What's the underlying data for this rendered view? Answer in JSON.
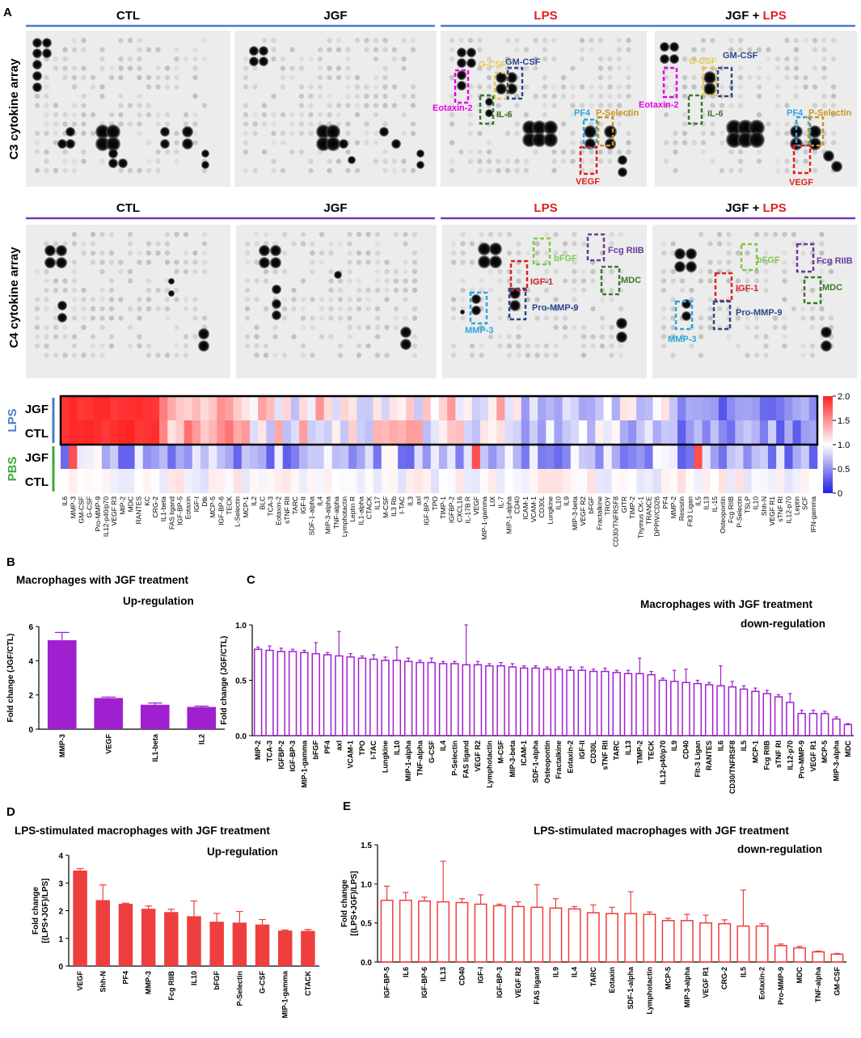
{
  "figure": {
    "panel_A": {
      "label": "A",
      "conditions": [
        "CTL",
        "JGF",
        "LPS",
        "JGF + LPS"
      ],
      "c3_label": "C3 cytokine array",
      "c4_label": "C4 cytokine array",
      "c3_callouts_lps": [
        {
          "text": "Eotaxin-2",
          "color": "#e600e6"
        },
        {
          "text": "G-CSF",
          "color": "#e6c84a"
        },
        {
          "text": "GM-CSF",
          "color": "#2a4a8a"
        },
        {
          "text": "IL-6",
          "color": "#3a7a2a"
        },
        {
          "text": "PF4",
          "color": "#29a8e0"
        },
        {
          "text": "P-Selectin",
          "color": "#c8961e"
        },
        {
          "text": "VEGF",
          "color": "#e02020"
        }
      ],
      "c3_callouts_jgflps": [
        {
          "text": "Eotaxin-2",
          "color": "#e600e6"
        },
        {
          "text": "G-CSF",
          "color": "#e6c84a"
        },
        {
          "text": "GM-CSF",
          "color": "#2a4a8a"
        },
        {
          "text": "IL-6",
          "color": "#3a7a2a"
        },
        {
          "text": "PF4",
          "color": "#29a8e0"
        },
        {
          "text": "P-Selectin",
          "color": "#c8961e"
        },
        {
          "text": "VEGF",
          "color": "#e02020"
        }
      ],
      "c4_callouts_lps": [
        {
          "text": "bFGF",
          "color": "#7ec850"
        },
        {
          "text": "Fcg RIIB",
          "color": "#6a3a9a"
        },
        {
          "text": "IGF-1",
          "color": "#e02020"
        },
        {
          "text": "MDC",
          "color": "#3a7a2a"
        },
        {
          "text": "Pro-MMP-9",
          "color": "#2a4a8a"
        },
        {
          "text": "MMP-3",
          "color": "#29a8e0"
        }
      ],
      "c4_callouts_jgflps": [
        {
          "text": "bFGF",
          "color": "#7ec850"
        },
        {
          "text": "Fcg RIIB",
          "color": "#6a3a9a"
        },
        {
          "text": "IGF-1",
          "color": "#e02020"
        },
        {
          "text": "MDC",
          "color": "#3a7a2a"
        },
        {
          "text": "Pro-MMP-9",
          "color": "#2a4a8a"
        },
        {
          "text": "MMP-3",
          "color": "#29a8e0"
        }
      ]
    },
    "heatmap": {
      "group_labels": [
        "LPS",
        "PBS"
      ],
      "row_labels": [
        "JGF",
        "CTL",
        "JGF",
        "CTL"
      ],
      "colorbar_ticks": [
        "2.0",
        "1.5",
        "1.0",
        "0.5",
        "0"
      ],
      "columns": [
        "IL6",
        "MMP-3",
        "GM-CSF",
        "G-CSF",
        "Pro-MMP-9",
        "IL12-p40/p70",
        "VEGF R3",
        "MIP-2",
        "MDC",
        "RANTES",
        "KC",
        "CRG-2",
        "IL1-beta",
        "FAS ligand",
        "IGF-BP-5",
        "Eotaxin",
        "IGF-I",
        "Dtk",
        "MCP-5",
        "IGF-BP-6",
        "TECK",
        "L-Selectin",
        "MCP-1",
        "IL2",
        "BLC",
        "TCA-3",
        "Eotaxin-2",
        "sTNF RII",
        "TARC",
        "IGF-II",
        "SDF-1-alpha",
        "IL4",
        "MIP-3-alpha",
        "TNF-alpha",
        "Lymphotactin",
        "Leptin R",
        "IL1-alpha",
        "CTACK",
        "IL17",
        "M-CSF",
        "IL3 Rb",
        "I-TAC",
        "IL3",
        "axl",
        "IGF-BP-3",
        "TPO",
        "TIMP-1",
        "IGFBP-2",
        "CXCL16",
        "IL-17B R",
        "VEGF",
        "MIP-1-gamma",
        "LIX",
        "IL-7",
        "MIP-1-alpha",
        "CD40",
        "ICAM-1",
        "VCAM-1",
        "CD30L",
        "Lungkine",
        "IL10",
        "IL9",
        "MIP-3-beta",
        "VEGF R2",
        "bFGF",
        "Fractalkine",
        "TROY",
        "CD30/TNFRSF8",
        "GITR",
        "TIMP-2",
        "Thymus CK-1",
        "TRANCE",
        "DPPIV/CD26",
        "PF4",
        "MMP-2",
        "Resistin",
        "Flt3 Ligan",
        "IL5",
        "IL13",
        "IL-15",
        "Osteopontin",
        "Fcg RIIB",
        "P-Selectin",
        "TSLP",
        "IL10",
        "Shh-N",
        "VEGF R1",
        "sTNF RI",
        "IL12-p70",
        "Leptin",
        "SCF",
        "IFN-gamma"
      ]
    },
    "chart_data": [
      {
        "id": "B",
        "type": "bar",
        "title": "Macrophages with  JGF treatment",
        "subtitle": "Up-regulation",
        "ylabel": "Fold change (JGF/CTL)",
        "ylim": [
          0,
          6
        ],
        "yticks": [
          0,
          2,
          4,
          6
        ],
        "categories": [
          "MMP-3",
          "VEGF",
          "IL1-beta",
          "IL2"
        ],
        "values": [
          5.2,
          1.82,
          1.43,
          1.3
        ],
        "errors": [
          0.45,
          0.06,
          0.1,
          0.05
        ],
        "color": "#a020d0",
        "fill": "solid"
      },
      {
        "id": "C",
        "type": "bar",
        "title": "Macrophages with  JGF treatment",
        "subtitle": "down-regulation",
        "ylabel": "Fold change (JGF/CTL)",
        "ylim": [
          0,
          1.0
        ],
        "yticks": [
          "0.0",
          "0.5",
          "1.0"
        ],
        "categories": [
          "MIP-2",
          "TCA-3",
          "IGFBP-2",
          "IGF-BP-3",
          "MIP-1-gamma",
          "bFGF",
          "PF4",
          "axl",
          "VCAM-1",
          "TPO",
          "I-TAC",
          "Lungkine",
          "IL10",
          "MIP-1-alpha",
          "TNF-alpha",
          "G-CSF",
          "IL4",
          "P-Selectin",
          "FAS ligand",
          "VEGF R2",
          "Lymphotactin",
          "M-CSF",
          "MIP-3-beta",
          "ICAM-1",
          "SDF-1-alpha",
          "Osteopontin",
          "Fractalkine",
          "Eotaxin-2",
          "IGF-II",
          "CD30L",
          "sTNF RII",
          "TARC",
          "IL13",
          "TIMP-2",
          "TECK",
          "IL12-p40/p70",
          "IL9",
          "CD40",
          "Flt-3 Ligan",
          "RANTES",
          "IL6",
          "CD30/TNFRSF8",
          "IL5",
          "MCP-1",
          "Fcg RIIB",
          "sTNF RI",
          "IL12-p70",
          "Pro-MMP-9",
          "VEGF R1",
          "MCP-5",
          "MIP-3-alpha",
          "MDC"
        ],
        "values": [
          0.78,
          0.77,
          0.76,
          0.76,
          0.75,
          0.74,
          0.73,
          0.72,
          0.71,
          0.7,
          0.69,
          0.68,
          0.68,
          0.67,
          0.66,
          0.66,
          0.65,
          0.65,
          0.64,
          0.64,
          0.63,
          0.63,
          0.62,
          0.61,
          0.61,
          0.6,
          0.6,
          0.59,
          0.59,
          0.58,
          0.58,
          0.57,
          0.56,
          0.56,
          0.55,
          0.5,
          0.49,
          0.48,
          0.47,
          0.46,
          0.45,
          0.44,
          0.42,
          0.4,
          0.38,
          0.35,
          0.3,
          0.2,
          0.2,
          0.2,
          0.15,
          0.1
        ],
        "errors": [
          0.02,
          0.04,
          0.03,
          0.02,
          0.02,
          0.1,
          0.02,
          0.22,
          0.03,
          0.02,
          0.04,
          0.03,
          0.12,
          0.03,
          0.02,
          0.04,
          0.02,
          0.02,
          0.36,
          0.03,
          0.02,
          0.03,
          0.03,
          0.02,
          0.02,
          0.02,
          0.02,
          0.03,
          0.03,
          0.02,
          0.03,
          0.02,
          0.03,
          0.14,
          0.03,
          0.02,
          0.1,
          0.12,
          0.03,
          0.02,
          0.18,
          0.05,
          0.03,
          0.03,
          0.03,
          0.02,
          0.08,
          0.03,
          0.03,
          0.02,
          0.02,
          0.01
        ],
        "color": "#a020d0",
        "fill": "hollow"
      },
      {
        "id": "D",
        "type": "bar",
        "title": "LPS-stimulated macrophages with  JGF treatment",
        "subtitle": "Up-regulation",
        "ylabel": "Fold change\n[(LPS+JGF)/LPS]",
        "ylim": [
          0,
          4
        ],
        "yticks": [
          0,
          1,
          2,
          3,
          4
        ],
        "categories": [
          "VEGF",
          "Shh-N",
          "PF4",
          "MMP-3",
          "Fcg RIIB",
          "IL10",
          "bFGF",
          "P-Selectin",
          "G-CSF",
          "MIP-1-gamma",
          "CTACK"
        ],
        "values": [
          3.45,
          2.38,
          2.25,
          2.07,
          1.95,
          1.8,
          1.6,
          1.57,
          1.5,
          1.28,
          1.27
        ],
        "errors": [
          0.07,
          0.55,
          0.02,
          0.1,
          0.1,
          0.55,
          0.3,
          0.4,
          0.18,
          0.02,
          0.05
        ],
        "color": "#ee3e3e",
        "fill": "solid"
      },
      {
        "id": "E",
        "type": "bar",
        "title": "LPS-stimulated macrophages with  JGF treatment",
        "subtitle": "down-regulation",
        "ylabel": "Fold change\n[(LPS+JGF)/LPS]",
        "ylim": [
          0,
          1.5
        ],
        "yticks": [
          "0.0",
          "0.5",
          "1.0",
          "1.5"
        ],
        "categories": [
          "IGF-BP-5",
          "IL6",
          "IGF-BP-6",
          "IL13",
          "CD40",
          "IGF-I",
          "IGF-BP-3",
          "VEGF R2",
          "FAS ligand",
          "IL9",
          "IL4",
          "TARC",
          "Eotaxin",
          "SDF-1-alpha",
          "Lymphotactin",
          "MCP-5",
          "MIP-3-alpha",
          "VEGF R1",
          "CRG-2",
          "IL5",
          "Eotaxin-2",
          "Pro-MMP-9",
          "MDC",
          "TNF-alpha",
          "GM-CSF"
        ],
        "values": [
          0.79,
          0.79,
          0.78,
          0.77,
          0.76,
          0.74,
          0.72,
          0.71,
          0.7,
          0.69,
          0.68,
          0.63,
          0.62,
          0.62,
          0.61,
          0.53,
          0.53,
          0.5,
          0.49,
          0.46,
          0.46,
          0.21,
          0.18,
          0.13,
          0.1
        ],
        "errors": [
          0.18,
          0.1,
          0.05,
          0.52,
          0.05,
          0.12,
          0.02,
          0.06,
          0.29,
          0.12,
          0.03,
          0.1,
          0.08,
          0.28,
          0.03,
          0.03,
          0.08,
          0.1,
          0.05,
          0.46,
          0.03,
          0.02,
          0.02,
          0.01,
          0.01
        ],
        "color": "#ee3e3e",
        "fill": "hollow"
      }
    ],
    "panel_labels": [
      "B",
      "C",
      "D",
      "E"
    ]
  }
}
